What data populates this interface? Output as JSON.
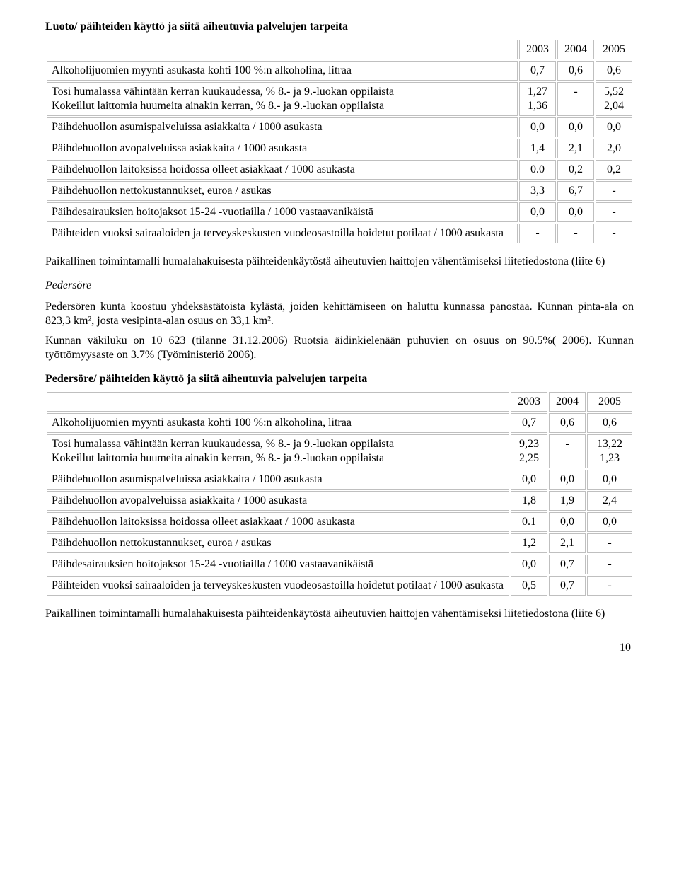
{
  "section1": {
    "heading": "Luoto/ päihteiden käyttö ja siitä aiheutuvia palvelujen tarpeita",
    "years": [
      "2003",
      "2004",
      "2005"
    ],
    "rows": [
      {
        "label": "Alkoholijuomien myynti asukasta kohti 100 %:n alkoholina, litraa",
        "v": [
          "0,7",
          "0,6",
          "0,6"
        ]
      },
      {
        "label": "Tosi humalassa vähintään kerran kuukaudessa, % 8.- ja 9.-luokan oppilaista\nKokeillut laittomia huumeita ainakin kerran, % 8.- ja 9.-luokan oppilaista",
        "v": [
          "1,27\n1,36",
          "-",
          "5,52\n2,04"
        ],
        "twoline": true
      },
      {
        "label": "Päihdehuollon asumispalveluissa asiakkaita / 1000 asukasta",
        "v": [
          "0,0",
          "0,0",
          "0,0"
        ]
      },
      {
        "label": "Päihdehuollon avopalveluissa asiakkaita / 1000 asukasta",
        "v": [
          "1,4",
          "2,1",
          "2,0"
        ]
      },
      {
        "label": "Päihdehuollon laitoksissa hoidossa olleet asiakkaat / 1000 asukasta",
        "v": [
          "0.0",
          "0,2",
          "0,2"
        ]
      },
      {
        "label": "Päihdehuollon nettokustannukset, euroa / asukas",
        "v": [
          "3,3",
          "6,7",
          "-"
        ]
      },
      {
        "label": "Päihdesairauksien hoitojaksot 15-24 -vuotiailla / 1000 vastaavanikäistä",
        "v": [
          "0,0",
          "0,0",
          "-"
        ]
      },
      {
        "label": "Päihteiden vuoksi sairaaloiden ja terveyskeskusten vuodeosastoilla hoidetut potilaat / 1000 asukasta",
        "v": [
          "-",
          "-",
          "-"
        ]
      }
    ]
  },
  "para1": "Paikallinen toimintamalli humalahakuisesta päihteidenkäytöstä aiheutuvien haittojen vähentämiseksi liitetiedostona (liite 6)",
  "subhead": "Pedersöre",
  "para2": "Pedersören kunta koostuu yhdeksästätoista kylästä, joiden kehittämiseen on haluttu kunnassa panostaa. Kunnan pinta-ala on 823,3 km², josta vesipinta-alan osuus on 33,1 km².",
  "para3": "Kunnan väkiluku on 10 623 (tilanne 31.12.2006) Ruotsia äidinkielenään puhuvien on osuus on 90.5%( 2006). Kunnan työttömyysaste on 3.7% (Työministeriö 2006).",
  "section2": {
    "heading": "Pedersöre/ päihteiden käyttö ja siitä aiheutuvia palvelujen tarpeita",
    "years": [
      "2003",
      "2004",
      "2005"
    ],
    "rows": [
      {
        "label": "Alkoholijuomien myynti asukasta kohti 100 %:n alkoholina, litraa",
        "v": [
          "0,7",
          "0,6",
          "0,6"
        ]
      },
      {
        "label": "Tosi humalassa vähintään kerran kuukaudessa, % 8.- ja 9.-luokan oppilaista\nKokeillut laittomia huumeita ainakin kerran, % 8.- ja 9.-luokan oppilaista",
        "v": [
          "9,23\n2,25",
          "-",
          "13,22\n1,23"
        ],
        "twoline": true
      },
      {
        "label": "Päihdehuollon asumispalveluissa asiakkaita / 1000 asukasta",
        "v": [
          "0,0",
          "0,0",
          "0,0"
        ]
      },
      {
        "label": "Päihdehuollon avopalveluissa asiakkaita / 1000 asukasta",
        "v": [
          "1,8",
          "1,9",
          "2,4"
        ]
      },
      {
        "label": "Päihdehuollon laitoksissa hoidossa olleet asiakkaat / 1000 asukasta",
        "v": [
          "0.1",
          "0,0",
          "0,0"
        ]
      },
      {
        "label": "Päihdehuollon nettokustannukset, euroa / asukas",
        "v": [
          "1,2",
          "2,1",
          "-"
        ]
      },
      {
        "label": "Päihdesairauksien hoitojaksot 15-24 -vuotiailla / 1000 vastaavanikäistä",
        "v": [
          "0,0",
          "0,7",
          "-"
        ]
      },
      {
        "label": "Päihteiden vuoksi sairaaloiden ja terveyskeskusten vuodeosastoilla hoidetut potilaat / 1000 asukasta",
        "v": [
          "0,5",
          "0,7",
          "-"
        ]
      }
    ]
  },
  "para4": "Paikallinen toimintamalli humalahakuisesta päihteidenkäytöstä aiheutuvien haittojen vähentämiseksi liitetiedostona (liite 6)",
  "pagenum": "10"
}
